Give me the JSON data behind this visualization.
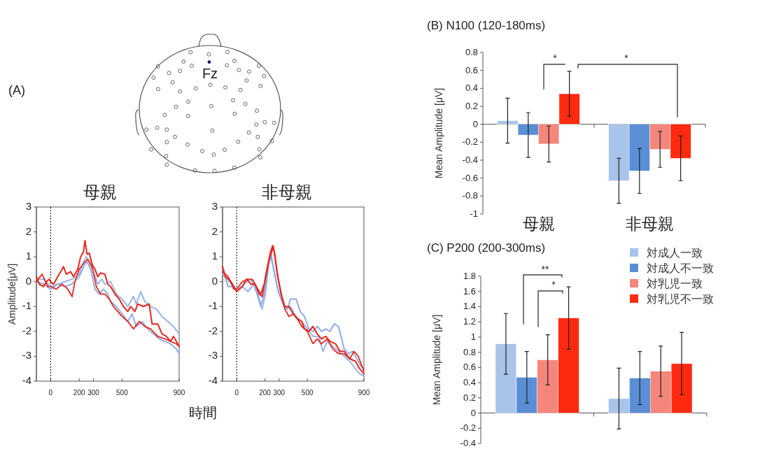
{
  "chart_data": [
    {
      "type": "line",
      "title": "母親",
      "ylabel": "Amplitude[μV]",
      "xlim": [
        -100,
        900
      ],
      "ylim": [
        -4,
        3
      ],
      "xticks": [
        0,
        200,
        300,
        500,
        900
      ],
      "yticks": [
        -4,
        -3,
        -2,
        -1,
        0,
        1,
        2,
        3
      ],
      "annotations": [
        "(A)",
        "Fz"
      ],
      "ref_lines": [
        {
          "axis": "x",
          "value": 0,
          "color": "#000000",
          "line_style": "dotted"
        }
      ],
      "series": [
        {
          "color": "#8eaee4",
          "line_style": "dotted",
          "x": [
            -100,
            -50,
            0,
            50,
            100,
            150,
            200,
            230,
            250,
            270,
            300,
            330,
            360,
            380,
            420,
            460,
            500,
            540,
            580,
            600,
            630,
            660,
            700,
            740,
            780,
            820,
            860,
            900
          ],
          "values": [
            0.1,
            0.1,
            -0.2,
            -0.1,
            0,
            0.1,
            0.3,
            0.8,
            1.0,
            0.8,
            0.4,
            -0.1,
            0.1,
            -0.1,
            0,
            -0.5,
            -0.7,
            -1.0,
            -0.6,
            -0.9,
            -0.4,
            -0.8,
            -1.0,
            -1.1,
            -1.4,
            -1.6,
            -1.8,
            -2.1
          ]
        },
        {
          "color": "#8eaee4",
          "line_style": "solid",
          "x": [
            -100,
            -50,
            0,
            50,
            100,
            150,
            200,
            240,
            255,
            280,
            310,
            340,
            370,
            400,
            420,
            460,
            500,
            540,
            570,
            600,
            640,
            680,
            720,
            760,
            800,
            840,
            880,
            900
          ],
          "values": [
            0,
            -0.1,
            -0.3,
            -0.1,
            -0.2,
            -0.1,
            0.2,
            0.7,
            0.8,
            0.5,
            -0.3,
            -0.5,
            -0.3,
            -0.5,
            -0.8,
            -1.0,
            -1.3,
            -1.6,
            -1.3,
            -1.8,
            -1.6,
            -1.9,
            -2.1,
            -2.3,
            -2.4,
            -2.5,
            -2.7,
            -2.9
          ]
        },
        {
          "color": "#e8261e",
          "line_style": "dotted",
          "x": [
            -100,
            -60,
            -20,
            0,
            40,
            80,
            120,
            150,
            170,
            200,
            240,
            260,
            290,
            320,
            350,
            380,
            410,
            440,
            470,
            500,
            540,
            580,
            620,
            660,
            700,
            750,
            800,
            840,
            880,
            900
          ],
          "values": [
            0,
            0.3,
            -0.2,
            -0.2,
            -0.3,
            -0.1,
            -0.3,
            -0.6,
            0,
            0.5,
            0.8,
            0.9,
            0.6,
            -0.2,
            -0.5,
            -0.5,
            -0.7,
            -1.0,
            -1.2,
            -1.4,
            -1.6,
            -1.9,
            -1.6,
            -1.8,
            -1.9,
            -2.2,
            -2.3,
            -2.4,
            -2.5,
            -2.6
          ]
        },
        {
          "color": "#e8261e",
          "line_style": "solid",
          "x": [
            -100,
            -80,
            -50,
            -30,
            -10,
            0,
            20,
            40,
            60,
            90,
            110,
            140,
            160,
            190,
            210,
            230,
            240,
            255,
            270,
            290,
            310,
            330,
            350,
            380,
            400,
            420,
            450,
            480,
            510,
            540,
            560,
            590,
            610,
            650,
            690,
            710,
            750,
            780,
            810,
            840,
            860,
            880,
            900
          ],
          "values": [
            0.2,
            -0.1,
            -0.2,
            0,
            0.1,
            0,
            -0.1,
            0.1,
            0.3,
            0.6,
            0.3,
            0.4,
            0.2,
            0.5,
            1.0,
            1.2,
            1.65,
            1.1,
            1.15,
            0.7,
            0.5,
            0.2,
            0.35,
            0.3,
            -0.1,
            -0.2,
            -0.5,
            -0.7,
            -1.0,
            -1.2,
            -1.0,
            -1.2,
            -0.9,
            -1.0,
            -0.9,
            -1.7,
            -1.7,
            -2.1,
            -2.2,
            -2.4,
            -2.2,
            -2.4,
            -2.6
          ]
        }
      ]
    },
    {
      "type": "line",
      "title": "非母親",
      "xlabel": "時間",
      "xlim": [
        -100,
        900
      ],
      "ylim": [
        -4,
        3
      ],
      "xticks": [
        0,
        200,
        300,
        500,
        900
      ],
      "yticks": [
        -4,
        -3,
        -2,
        -1,
        0,
        1,
        2,
        3
      ],
      "ref_lines": [
        {
          "axis": "x",
          "value": 0,
          "color": "#000000",
          "line_style": "dotted"
        }
      ],
      "series": [
        {
          "color": "#8eaee4",
          "line_style": "dotted",
          "x": [
            -100,
            -50,
            0,
            50,
            100,
            150,
            180,
            200,
            230,
            245,
            260,
            290,
            320,
            350,
            380,
            420,
            460,
            500,
            540,
            580,
            610,
            640,
            680,
            720,
            760,
            800,
            840,
            870,
            900
          ],
          "values": [
            0.3,
            0,
            -0.4,
            -0.1,
            0.1,
            -0.5,
            -1.1,
            -0.6,
            0.8,
            1.1,
            0.5,
            -0.3,
            -0.8,
            -1.1,
            -1.0,
            -1.4,
            -1.6,
            -1.9,
            -2.2,
            -2.2,
            -2.8,
            -2.4,
            -2.6,
            -2.8,
            -3.0,
            -3.2,
            -3.5,
            -3.7,
            -3.8
          ]
        },
        {
          "color": "#8eaee4",
          "line_style": "solid",
          "x": [
            -100,
            -60,
            -20,
            0,
            40,
            80,
            120,
            150,
            170,
            190,
            220,
            240,
            260,
            280,
            300,
            330,
            360,
            380,
            420,
            450,
            480,
            510,
            540,
            570,
            600,
            630,
            660,
            690,
            720,
            760,
            790,
            820,
            850,
            880,
            900
          ],
          "values": [
            0.5,
            -0.2,
            -0.2,
            -0.3,
            -0.2,
            -0.4,
            -0.1,
            -0.6,
            -1.0,
            -0.6,
            0.5,
            1.0,
            0.6,
            0.0,
            -0.5,
            -0.9,
            -1.1,
            -0.7,
            -0.7,
            -1.2,
            -1.4,
            -1.9,
            -2.0,
            -1.8,
            -2.0,
            -1.9,
            -2.0,
            -1.7,
            -1.8,
            -2.7,
            -2.9,
            -2.8,
            -3.1,
            -3.4,
            -3.5
          ]
        },
        {
          "color": "#e8261e",
          "line_style": "dotted",
          "x": [
            -100,
            -60,
            -20,
            0,
            40,
            80,
            110,
            140,
            170,
            200,
            230,
            260,
            280,
            310,
            340,
            370,
            400,
            430,
            460,
            500,
            540,
            570,
            600,
            640,
            680,
            720,
            760,
            800,
            830,
            860,
            880,
            900
          ],
          "values": [
            0.4,
            0.2,
            -0.3,
            -0.3,
            0,
            0.1,
            0.1,
            -0.2,
            -0.5,
            0,
            0.9,
            1.4,
            0.6,
            -0.4,
            -1.1,
            -1.4,
            -1.3,
            -1.5,
            -1.8,
            -2.0,
            -2.5,
            -2.3,
            -2.5,
            -2.3,
            -2.7,
            -2.9,
            -2.9,
            -3.1,
            -2.8,
            -3.0,
            -3.3,
            -3.6
          ]
        },
        {
          "color": "#e8261e",
          "line_style": "solid",
          "x": [
            -100,
            -80,
            -40,
            0,
            40,
            70,
            100,
            130,
            160,
            180,
            210,
            240,
            255,
            270,
            290,
            320,
            340,
            370,
            400,
            430,
            460,
            480,
            510,
            540,
            570,
            600,
            630,
            660,
            700,
            730,
            760,
            800,
            840,
            870,
            900
          ],
          "values": [
            0.6,
            0.2,
            0,
            -0.4,
            -0.2,
            0.1,
            -0.1,
            -0.1,
            -0.5,
            -0.6,
            0.4,
            1.2,
            1.45,
            1.1,
            0.2,
            -0.6,
            -1.0,
            -1.0,
            -1.3,
            -1.5,
            -1.6,
            -1.9,
            -2.0,
            -1.8,
            -2.1,
            -2.3,
            -2.2,
            -2.4,
            -2.5,
            -2.8,
            -2.8,
            -3.1,
            -3.2,
            -3.5,
            -3.7
          ]
        }
      ]
    },
    {
      "type": "bar",
      "title": "(B)  N100 (120-180ms)",
      "ylabel": "Mean Amplitude [μV]",
      "categories": [
        "母親",
        "非母親"
      ],
      "ylim": [
        -1,
        0.8
      ],
      "yticks": [
        -1,
        -0.8,
        -0.6,
        -0.4,
        -0.2,
        0,
        0.2,
        0.4,
        0.6,
        0.8
      ],
      "annotations": [
        "*",
        "*"
      ],
      "series": [
        {
          "color": "#a8c4ea",
          "values": [
            0.04,
            -0.63
          ],
          "errors": [
            0.25,
            0.25
          ]
        },
        {
          "color": "#5b8fd5",
          "values": [
            -0.12,
            -0.52
          ],
          "errors": [
            0.25,
            0.25
          ]
        },
        {
          "color": "#f5867c",
          "values": [
            -0.22,
            -0.28
          ],
          "errors": [
            0.2,
            0.2
          ]
        },
        {
          "color": "#ff2a10",
          "values": [
            0.34,
            -0.38
          ],
          "errors": [
            0.25,
            0.25
          ]
        }
      ]
    },
    {
      "type": "bar",
      "title": "(C)  P200 (200-300ms)",
      "ylabel": "Mean Amplitude [μV]",
      "categories": [
        null,
        null
      ],
      "ylim": [
        -0.4,
        1.8
      ],
      "yticks": [
        -0.4,
        -0.2,
        0,
        0.2,
        0.4,
        0.6,
        0.8,
        1,
        1.2,
        1.4,
        1.6,
        1.8
      ],
      "annotations": [
        "**",
        "*"
      ],
      "legend": "top right",
      "series": [
        {
          "name": "対成人一致",
          "color": "#a8c4ea",
          "values": [
            0.91,
            0.19
          ],
          "errors": [
            0.4,
            0.4
          ]
        },
        {
          "name": "対成人不一致",
          "color": "#5b8fd5",
          "values": [
            0.47,
            0.46
          ],
          "errors": [
            0.34,
            0.35
          ]
        },
        {
          "name": "対乳児一致",
          "color": "#f5867c",
          "values": [
            0.7,
            0.55
          ],
          "errors": [
            0.33,
            0.33
          ]
        },
        {
          "name": "対乳児不一致",
          "color": "#ff2a10",
          "values": [
            1.25,
            0.65
          ],
          "errors": [
            0.41,
            0.41
          ]
        }
      ]
    }
  ]
}
